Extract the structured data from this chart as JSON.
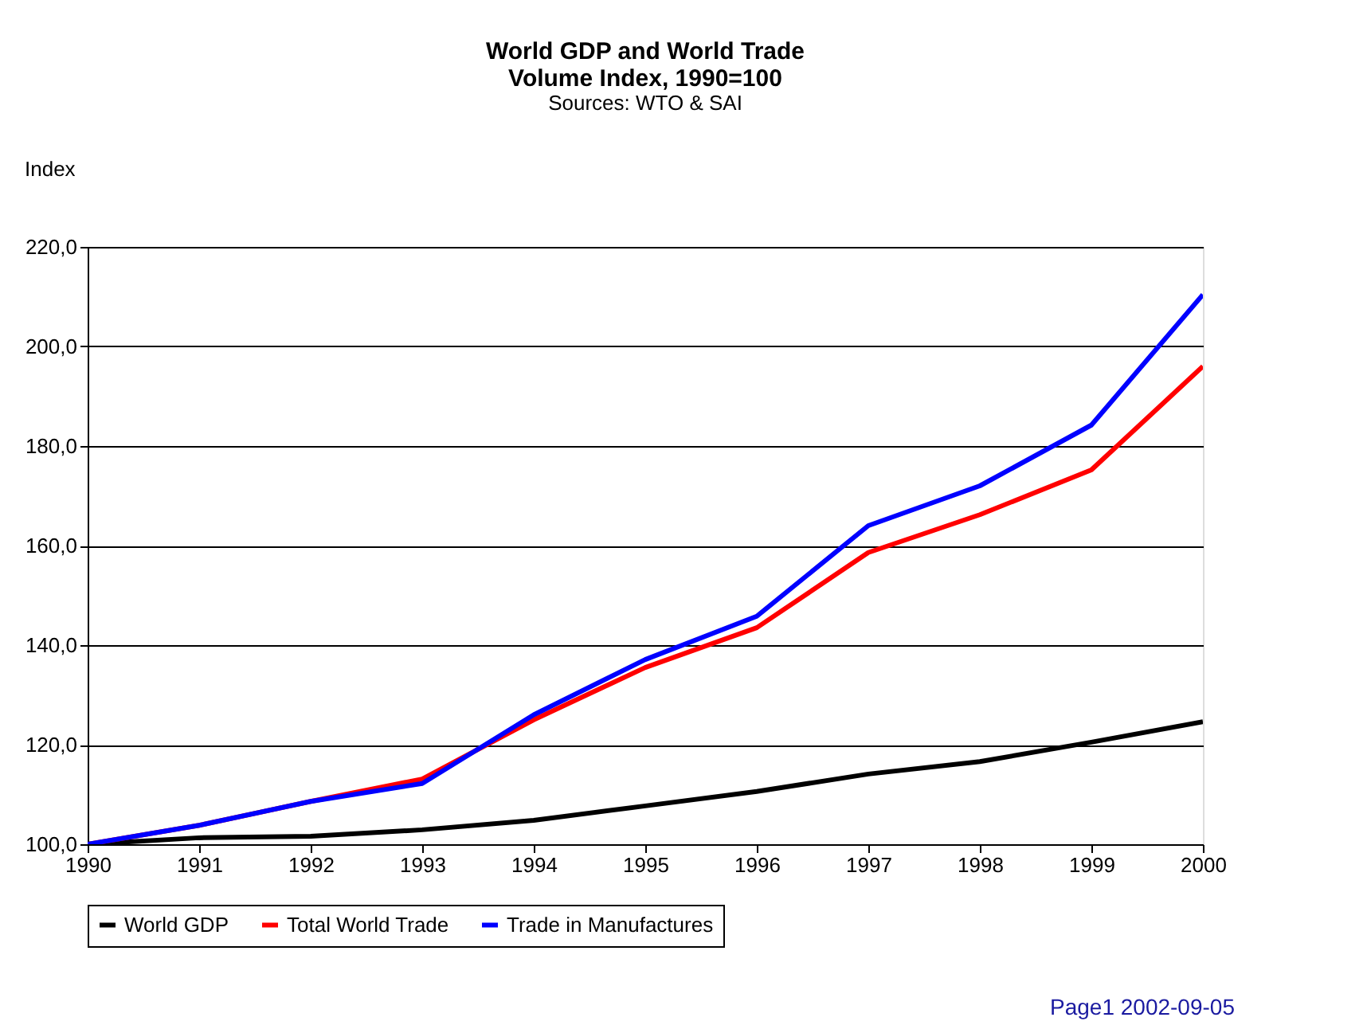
{
  "chart_data": {
    "type": "line",
    "title": "World GDP and World Trade",
    "subtitle": "Volume Index, 1990=100",
    "ylabel": "Index",
    "annotations": [
      "Sources: WTO & SAI",
      "Page1    2002-09-05"
    ],
    "x": [
      1990,
      1991,
      1992,
      1993,
      1994,
      1995,
      1996,
      1997,
      1998,
      1999,
      2000
    ],
    "series": [
      {
        "name": "World GDP",
        "color": "#000000",
        "values": [
          100,
          101.3,
          101.6,
          102.9,
          104.8,
          107.7,
          110.6,
          114.1,
          116.6,
          120.5,
          124.6
        ]
      },
      {
        "name": "Total World Trade",
        "color": "#ff0000",
        "values": [
          100,
          103.8,
          108.6,
          113.1,
          125,
          135.5,
          143.5,
          158.6,
          166.2,
          175.2,
          196
        ]
      },
      {
        "name": "Trade in Manufactures",
        "color": "#0000ff",
        "values": [
          100,
          103.8,
          108.6,
          112.2,
          126,
          137.1,
          145.8,
          164,
          172,
          184.2,
          210.4
        ]
      }
    ],
    "xlim": [
      1990,
      2000
    ],
    "xticks": [
      1990,
      1991,
      1992,
      1993,
      1994,
      1995,
      1996,
      1997,
      1998,
      1999,
      2000
    ],
    "ylim": [
      100,
      220
    ],
    "yticks": [
      {
        "value": 100,
        "label": "100,0"
      },
      {
        "value": 120,
        "label": "120,0"
      },
      {
        "value": 140,
        "label": "140,0"
      },
      {
        "value": 160,
        "label": "160,0"
      },
      {
        "value": 180,
        "label": "180,0"
      },
      {
        "value": 200,
        "label": "200,0"
      },
      {
        "value": 220,
        "label": "220,0"
      }
    ],
    "grid": "y",
    "legend": "bottom",
    "marker": "none",
    "line_style": "solid"
  }
}
